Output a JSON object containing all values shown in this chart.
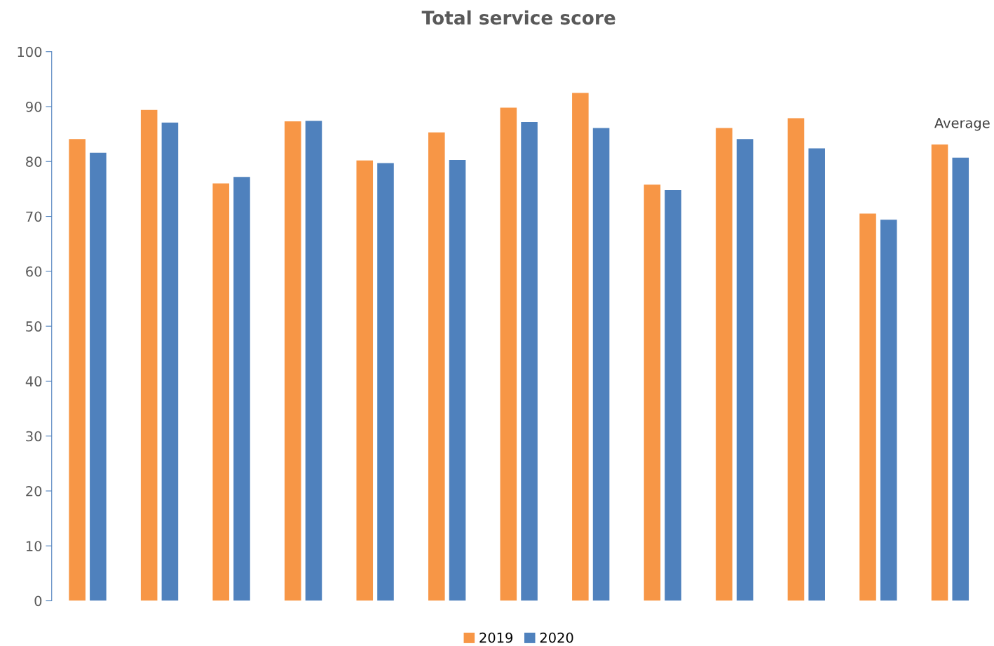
{
  "chart_data": {
    "type": "bar",
    "title": "Total service score",
    "categories": [
      null,
      null,
      null,
      null,
      null,
      null,
      null,
      null,
      null,
      null,
      null,
      null,
      "Average"
    ],
    "series": [
      {
        "name": "2019",
        "color": "#f79646",
        "values": [
          84.1,
          89.4,
          76.0,
          87.3,
          80.2,
          85.3,
          89.8,
          92.5,
          75.8,
          86.1,
          87.9,
          70.5,
          83.1
        ]
      },
      {
        "name": "2020",
        "color": "#4f81bd",
        "values": [
          81.6,
          87.1,
          77.2,
          87.4,
          79.7,
          80.3,
          87.2,
          86.1,
          74.8,
          84.1,
          82.4,
          69.4,
          80.7
        ]
      }
    ],
    "ylim": [
      0,
      100
    ],
    "yticks": [
      0,
      10,
      20,
      30,
      40,
      50,
      60,
      70,
      80,
      90,
      100
    ],
    "grid": false,
    "legend": "bottom"
  }
}
